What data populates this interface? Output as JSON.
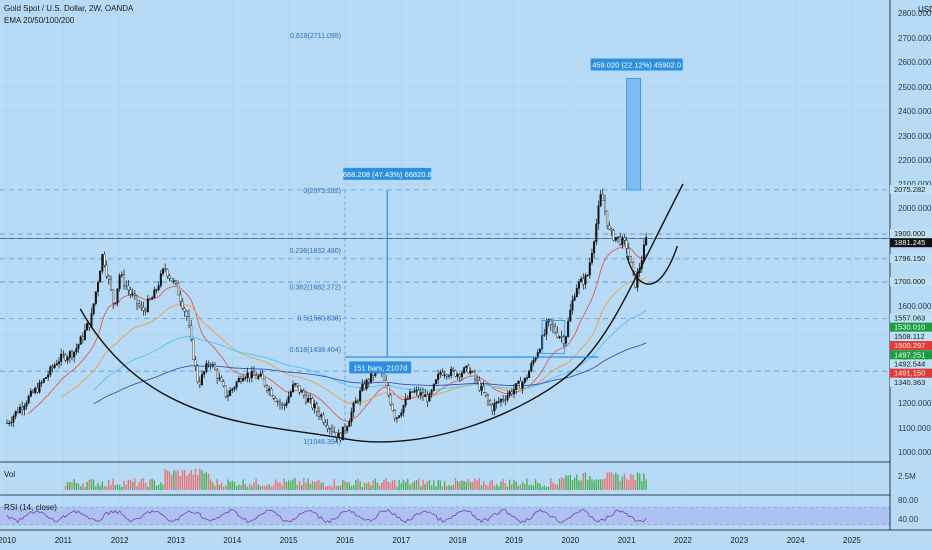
{
  "header": {
    "symbol": "Gold Spot / U.S. Dollar, 2W, OANDA",
    "indicator": "EMA 20/50/100/200",
    "currency": "USD"
  },
  "panes": {
    "volume_label": "Vol",
    "rsi_label": "RSI (14, close)"
  },
  "colors": {
    "background": "#b7dbf6",
    "candle": "#111111",
    "ema20": "#e05b55",
    "ema50": "#e8a34a",
    "ema100": "#4fc3f7",
    "ema200": "#3f51b5",
    "fib": "#2a6fb0",
    "measure": "#2d8fe0",
    "rsi": "#7b3fb0"
  },
  "annotations": {
    "fib_0618": "0.618(2711.095)",
    "fib_0": "0(2075.282)",
    "fib_0236": "0.236(1832.480)",
    "fib_0382": "0.382(1682.272)",
    "fib_05": "0.5(1560.838)",
    "fib_0618b": "0.618(1439.404)",
    "fib_1": "1(1046.394)",
    "measure_big": "668.208 (47.43%) 66820.8",
    "measure_top": "459.020 (22.12%) 45902.0",
    "bars_info": "151 bars, 2107d"
  },
  "price_tags": [
    {
      "text": "1900.000",
      "price": 1900,
      "bg": "#bde0f5",
      "fg": "#1a1a1a"
    },
    {
      "text": "2075.282",
      "price": 2075.282,
      "bg": "#bde0f5",
      "fg": "#1a1a1a"
    },
    {
      "text": "1881.245",
      "price": 1881.245,
      "bg": "#111111",
      "fg": "#ffffff"
    },
    {
      "text": "1796.150",
      "price": 1796.15,
      "bg": "#bde0f5",
      "fg": "#1a1a1a"
    },
    {
      "text": "1700.000",
      "price": 1700,
      "bg": "#bde0f5",
      "fg": "#1a1a1a"
    },
    {
      "text": "1557.063",
      "price": 1557.063,
      "bg": "#bde0f5",
      "fg": "#1a1a1a"
    },
    {
      "text": "1530.010",
      "price": 1530.01,
      "bg": "#1b9e3e",
      "fg": "#ffffff"
    },
    {
      "text": "1508.112",
      "price": 1508.112,
      "bg": "#bde0f5",
      "fg": "#1a1a1a"
    },
    {
      "text": "1500.297",
      "price": 1500.297,
      "bg": "#e53935",
      "fg": "#ffffff"
    },
    {
      "text": "1497.251",
      "price": 1497.251,
      "bg": "#1b9e3e",
      "fg": "#ffffff"
    },
    {
      "text": "1492.544",
      "price": 1492.544,
      "bg": "#bde0f5",
      "fg": "#1a1a1a"
    },
    {
      "text": "1491.150",
      "price": 1491.15,
      "bg": "#e53935",
      "fg": "#ffffff"
    },
    {
      "text": "1340.363",
      "price": 1340.363,
      "bg": "#bde0f5",
      "fg": "#1a1a1a"
    }
  ],
  "chart_data": {
    "type": "candlestick",
    "title": "Gold Spot / U.S. Dollar, 2W, OANDA",
    "y_axis": {
      "ticks": [
        1000,
        1100,
        1200,
        1300,
        1400,
        1500,
        1600,
        1700,
        1800,
        1900,
        2000,
        2100,
        2200,
        2300,
        2400,
        2500,
        2600,
        2700,
        2800
      ],
      "tick_labels": [
        "1000.000",
        "1100.000",
        "1200.000",
        "1300.000",
        "1400.000",
        "1500.000",
        "1600.000",
        "1700.000",
        "1800.000",
        "1900.000",
        "2000.000",
        "2100.000",
        "2200.000",
        "2300.000",
        "2400.000",
        "2500.000",
        "2600.000",
        "2700.000",
        "2800.000"
      ],
      "range": [
        930,
        2840
      ]
    },
    "x_axis": {
      "ticks": [
        2010,
        2011,
        2012,
        2013,
        2014,
        2015,
        2016,
        2017,
        2018,
        2019,
        2020,
        2021,
        2022,
        2023,
        2024,
        2025
      ],
      "range": [
        2010.0,
        2026.0
      ]
    },
    "price_path": [
      [
        2010.0,
        1120
      ],
      [
        2010.3,
        1200
      ],
      [
        2010.6,
        1280
      ],
      [
        2010.9,
        1390
      ],
      [
        2011.2,
        1430
      ],
      [
        2011.5,
        1560
      ],
      [
        2011.7,
        1820
      ],
      [
        2011.9,
        1600
      ],
      [
        2012.0,
        1730
      ],
      [
        2012.2,
        1650
      ],
      [
        2012.4,
        1580
      ],
      [
        2012.6,
        1640
      ],
      [
        2012.8,
        1760
      ],
      [
        2013.0,
        1680
      ],
      [
        2013.2,
        1560
      ],
      [
        2013.4,
        1280
      ],
      [
        2013.6,
        1390
      ],
      [
        2013.9,
        1230
      ],
      [
        2014.2,
        1330
      ],
      [
        2014.5,
        1310
      ],
      [
        2014.9,
        1180
      ],
      [
        2015.1,
        1280
      ],
      [
        2015.5,
        1170
      ],
      [
        2015.9,
        1060
      ],
      [
        2016.0,
        1100
      ],
      [
        2016.3,
        1260
      ],
      [
        2016.6,
        1360
      ],
      [
        2016.9,
        1140
      ],
      [
        2017.2,
        1250
      ],
      [
        2017.5,
        1220
      ],
      [
        2017.7,
        1340
      ],
      [
        2018.0,
        1330
      ],
      [
        2018.2,
        1350
      ],
      [
        2018.6,
        1180
      ],
      [
        2018.9,
        1240
      ],
      [
        2019.2,
        1300
      ],
      [
        2019.4,
        1420
      ],
      [
        2019.6,
        1540
      ],
      [
        2019.9,
        1480
      ],
      [
        2020.1,
        1680
      ],
      [
        2020.3,
        1720
      ],
      [
        2020.55,
        2060
      ],
      [
        2020.7,
        1900
      ],
      [
        2020.85,
        1880
      ],
      [
        2021.0,
        1850
      ],
      [
        2021.15,
        1690
      ],
      [
        2021.25,
        1780
      ],
      [
        2021.35,
        1880
      ]
    ],
    "ema_series": [
      {
        "name": "EMA 20",
        "period": 20
      },
      {
        "name": "EMA 50",
        "period": 50
      },
      {
        "name": "EMA 100",
        "period": 100
      },
      {
        "name": "EMA 200",
        "period": 200
      }
    ],
    "fib_levels": [
      {
        "label": "0",
        "price": 2075.282
      },
      {
        "label": "0.236",
        "price": 1832.48
      },
      {
        "label": "0.382",
        "price": 1682.272
      },
      {
        "label": "0.5",
        "price": 1560.838
      },
      {
        "label": "0.618",
        "price": 1439.404
      },
      {
        "label": "1",
        "price": 1046.394
      },
      {
        "label": "0.618",
        "price": 2711.095
      }
    ],
    "horizontal_levels": [
      2075.282,
      1900,
      1881.245,
      1796.15,
      1700,
      1557.063,
      1340.363
    ],
    "rsi": {
      "ticks": [
        40,
        80
      ],
      "tick_labels": [
        "40.00",
        "80.00"
      ]
    },
    "volume": {
      "ticks": [
        2500000
      ],
      "tick_labels": [
        "2.5M"
      ]
    }
  }
}
